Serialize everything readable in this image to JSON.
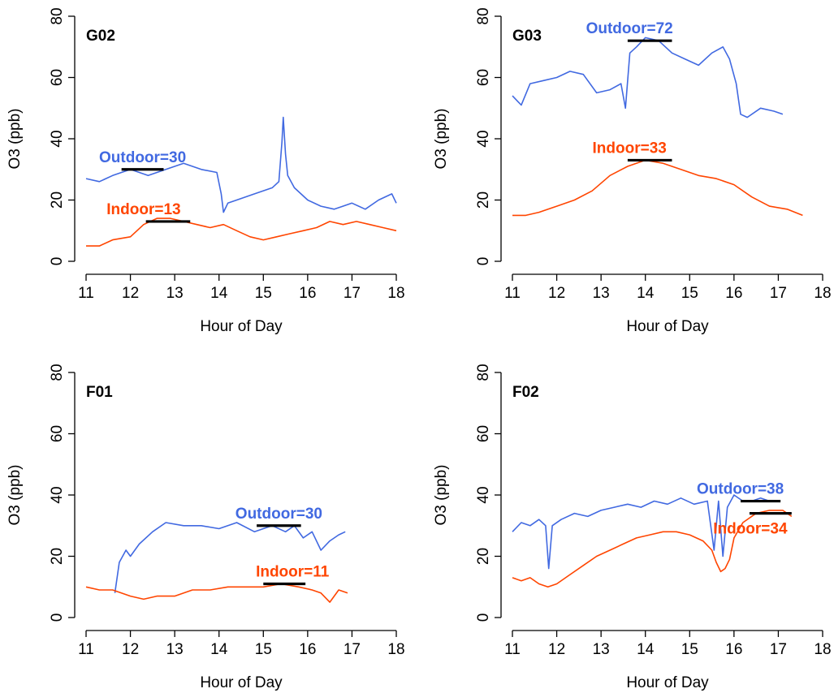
{
  "colors": {
    "outdoor": "#4169E1",
    "indoor": "#FF4500",
    "mean_line": "#000000"
  },
  "chart_data": [
    {
      "type": "line",
      "title": "G02",
      "xlabel": "Hour of Day",
      "ylabel": "O3 (ppb)",
      "xlim": [
        11,
        18
      ],
      "ylim": [
        0,
        80
      ],
      "xticks": [
        11,
        12,
        13,
        14,
        15,
        16,
        17,
        18
      ],
      "yticks": [
        0,
        20,
        40,
        60,
        80
      ],
      "series": [
        {
          "key": "outdoor",
          "x": [
            11.0,
            11.3,
            11.6,
            12.0,
            12.4,
            12.8,
            13.2,
            13.6,
            13.95,
            14.05,
            14.1,
            14.2,
            14.4,
            14.8,
            15.2,
            15.35,
            15.42,
            15.45,
            15.5,
            15.55,
            15.7,
            16.0,
            16.3,
            16.6,
            17.0,
            17.3,
            17.6,
            17.9,
            18.0
          ],
          "y": [
            27,
            26,
            28,
            30,
            28,
            30,
            32,
            30,
            29,
            22,
            16,
            19,
            20,
            22,
            24,
            26,
            39,
            47,
            35,
            28,
            24,
            20,
            18,
            17,
            19,
            17,
            20,
            22,
            19
          ]
        },
        {
          "key": "indoor",
          "x": [
            11.0,
            11.3,
            11.6,
            12.0,
            12.3,
            12.6,
            12.9,
            13.2,
            13.5,
            13.8,
            14.1,
            14.4,
            14.7,
            15.0,
            15.3,
            15.6,
            15.9,
            16.2,
            16.5,
            16.8,
            17.1,
            17.4,
            17.7,
            18.0
          ],
          "y": [
            5,
            5,
            7,
            8,
            12,
            14,
            14,
            13,
            12,
            11,
            12,
            10,
            8,
            7,
            8,
            9,
            10,
            11,
            13,
            12,
            13,
            12,
            11,
            10
          ]
        }
      ],
      "annotations": [
        {
          "key": "outdoor",
          "text": "Outdoor=30",
          "x_start": 11.8,
          "x_end": 12.75,
          "value": 30
        },
        {
          "key": "indoor",
          "text": "Indoor=13",
          "x_start": 12.35,
          "x_end": 13.35,
          "value": 13
        }
      ]
    },
    {
      "type": "line",
      "title": "G03",
      "xlabel": "Hour of Day",
      "ylabel": "O3 (ppb)",
      "xlim": [
        11,
        18
      ],
      "ylim": [
        0,
        80
      ],
      "xticks": [
        11,
        12,
        13,
        14,
        15,
        16,
        17,
        18
      ],
      "yticks": [
        0,
        20,
        40,
        60,
        80
      ],
      "series": [
        {
          "key": "outdoor",
          "x": [
            11.0,
            11.2,
            11.4,
            11.7,
            12.0,
            12.3,
            12.6,
            12.9,
            13.2,
            13.45,
            13.55,
            13.65,
            13.8,
            14.0,
            14.3,
            14.6,
            14.9,
            15.2,
            15.5,
            15.75,
            15.9,
            16.05,
            16.15,
            16.3,
            16.6,
            16.9,
            17.1
          ],
          "y": [
            54,
            51,
            58,
            59,
            60,
            62,
            61,
            55,
            56,
            58,
            50,
            68,
            70,
            73,
            72,
            68,
            66,
            64,
            68,
            70,
            66,
            58,
            48,
            47,
            50,
            49,
            48
          ]
        },
        {
          "key": "indoor",
          "x": [
            11.0,
            11.3,
            11.6,
            12.0,
            12.4,
            12.8,
            13.2,
            13.6,
            14.0,
            14.4,
            14.8,
            15.2,
            15.6,
            16.0,
            16.4,
            16.8,
            17.2,
            17.55
          ],
          "y": [
            15,
            15,
            16,
            18,
            20,
            23,
            28,
            31,
            33,
            32,
            30,
            28,
            27,
            25,
            21,
            18,
            17,
            15
          ]
        }
      ],
      "annotations": [
        {
          "key": "outdoor",
          "text": "Outdoor=72",
          "x_start": 13.6,
          "x_end": 14.6,
          "value": 72
        },
        {
          "key": "indoor",
          "text": "Indoor=33",
          "x_start": 13.6,
          "x_end": 14.6,
          "value": 33
        }
      ]
    },
    {
      "type": "line",
      "title": "F01",
      "xlabel": "Hour of Day",
      "ylabel": "O3 (ppb)",
      "xlim": [
        11,
        18
      ],
      "ylim": [
        0,
        80
      ],
      "xticks": [
        11,
        12,
        13,
        14,
        15,
        16,
        17,
        18
      ],
      "yticks": [
        0,
        20,
        40,
        60,
        80
      ],
      "series": [
        {
          "key": "outdoor",
          "x": [
            11.65,
            11.75,
            11.9,
            12.0,
            12.2,
            12.5,
            12.8,
            13.2,
            13.6,
            14.0,
            14.4,
            14.8,
            15.2,
            15.5,
            15.7,
            15.9,
            16.1,
            16.3,
            16.5,
            16.7,
            16.85
          ],
          "y": [
            8,
            18,
            22,
            20,
            24,
            28,
            31,
            30,
            30,
            29,
            31,
            28,
            30,
            28,
            30,
            26,
            28,
            22,
            25,
            27,
            28
          ]
        },
        {
          "key": "indoor",
          "x": [
            11.0,
            11.3,
            11.6,
            12.0,
            12.3,
            12.6,
            13.0,
            13.4,
            13.8,
            14.2,
            14.6,
            15.0,
            15.4,
            15.8,
            16.1,
            16.3,
            16.5,
            16.7,
            16.9
          ],
          "y": [
            10,
            9,
            9,
            7,
            6,
            7,
            7,
            9,
            9,
            10,
            10,
            10,
            11,
            10,
            9,
            8,
            5,
            9,
            8
          ]
        }
      ],
      "annotations": [
        {
          "key": "outdoor",
          "text": "Outdoor=30",
          "x_start": 14.85,
          "x_end": 15.85,
          "value": 30
        },
        {
          "key": "indoor",
          "text": "Indoor=11",
          "x_start": 15.0,
          "x_end": 15.95,
          "value": 11
        }
      ]
    },
    {
      "type": "line",
      "title": "F02",
      "xlabel": "Hour of Day",
      "ylabel": "O3 (ppb)",
      "xlim": [
        11,
        18
      ],
      "ylim": [
        0,
        80
      ],
      "xticks": [
        11,
        12,
        13,
        14,
        15,
        16,
        17,
        18
      ],
      "yticks": [
        0,
        20,
        40,
        60,
        80
      ],
      "series": [
        {
          "key": "outdoor",
          "x": [
            11.0,
            11.2,
            11.4,
            11.6,
            11.75,
            11.82,
            11.9,
            12.1,
            12.4,
            12.7,
            13.0,
            13.3,
            13.6,
            13.9,
            14.2,
            14.5,
            14.8,
            15.1,
            15.4,
            15.55,
            15.65,
            15.75,
            15.85,
            16.0,
            16.2,
            16.4,
            16.6,
            16.8,
            17.0
          ],
          "y": [
            28,
            31,
            30,
            32,
            30,
            16,
            30,
            32,
            34,
            33,
            35,
            36,
            37,
            36,
            38,
            37,
            39,
            37,
            38,
            22,
            38,
            20,
            36,
            40,
            38,
            38,
            39,
            38,
            38
          ]
        },
        {
          "key": "indoor",
          "x": [
            11.0,
            11.2,
            11.4,
            11.6,
            11.8,
            12.0,
            12.3,
            12.6,
            12.9,
            13.2,
            13.5,
            13.8,
            14.1,
            14.4,
            14.7,
            15.0,
            15.3,
            15.5,
            15.6,
            15.7,
            15.8,
            15.9,
            16.0,
            16.2,
            16.5,
            16.8,
            17.1,
            17.3
          ],
          "y": [
            13,
            12,
            13,
            11,
            10,
            11,
            14,
            17,
            20,
            22,
            24,
            26,
            27,
            28,
            28,
            27,
            25,
            22,
            18,
            15,
            16,
            19,
            26,
            31,
            34,
            35,
            35,
            33
          ]
        }
      ],
      "annotations": [
        {
          "key": "outdoor",
          "text": "Outdoor=38",
          "x_start": 16.15,
          "x_end": 17.05,
          "value": 38
        },
        {
          "key": "indoor",
          "text": "Indoor=34",
          "x_start": 16.35,
          "x_end": 17.3,
          "value": 34
        }
      ]
    }
  ]
}
